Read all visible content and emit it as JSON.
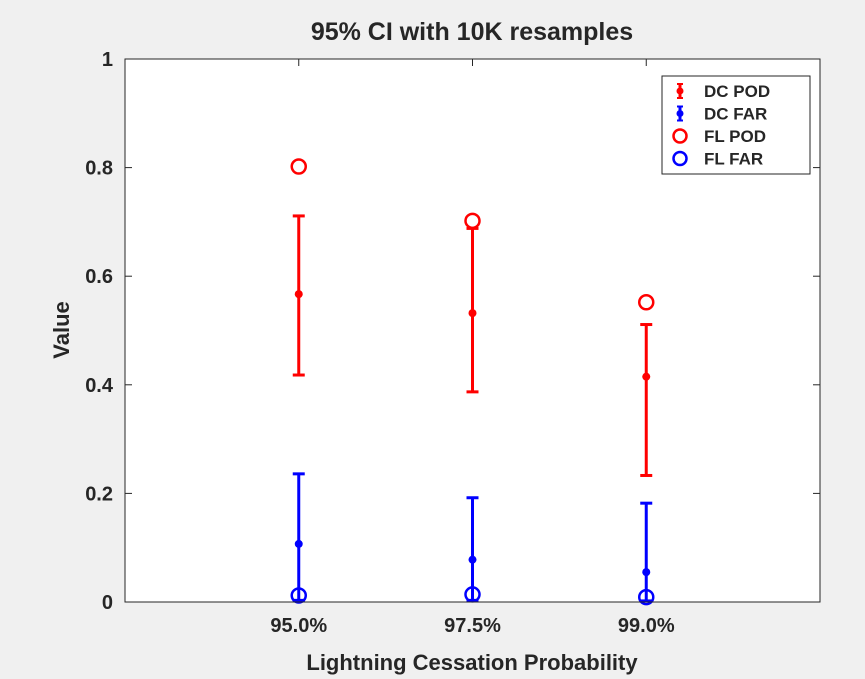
{
  "figure": {
    "background": "#f0f0f0",
    "axes_background": "#ffffff"
  },
  "chart_data": {
    "type": "scatter",
    "title": "95% CI with 10K resamples",
    "xlabel": "Lightning Cessation Probability",
    "ylabel": "Value",
    "categories": [
      "95.0%",
      "97.5%",
      "99.0%"
    ],
    "xlim": [
      0,
      4
    ],
    "x": [
      1,
      2,
      3
    ],
    "ylim": [
      0,
      1
    ],
    "yticks": [
      0,
      0.2,
      0.4,
      0.6,
      0.8,
      1
    ],
    "ytick_labels": [
      "0",
      "0.2",
      "0.4",
      "0.6",
      "0.8",
      "1"
    ],
    "grid": false,
    "legend_position": "top-right",
    "series": [
      {
        "name": "DC POD",
        "kind": "errorbar",
        "color": "#ff0000",
        "values": [
          0.567,
          0.532,
          0.415
        ],
        "lower": [
          0.418,
          0.387,
          0.233
        ],
        "upper": [
          0.711,
          0.688,
          0.511
        ]
      },
      {
        "name": "DC FAR",
        "kind": "errorbar",
        "color": "#0000ff",
        "values": [
          0.107,
          0.078,
          0.055
        ],
        "lower": [
          0.003,
          0.003,
          0.002
        ],
        "upper": [
          0.236,
          0.192,
          0.182
        ]
      },
      {
        "name": "FL POD",
        "kind": "marker",
        "color": "#ff0000",
        "values": [
          0.802,
          0.702,
          0.552
        ]
      },
      {
        "name": "FL FAR",
        "kind": "marker",
        "color": "#0000ff",
        "values": [
          0.012,
          0.014,
          0.009
        ]
      }
    ]
  }
}
